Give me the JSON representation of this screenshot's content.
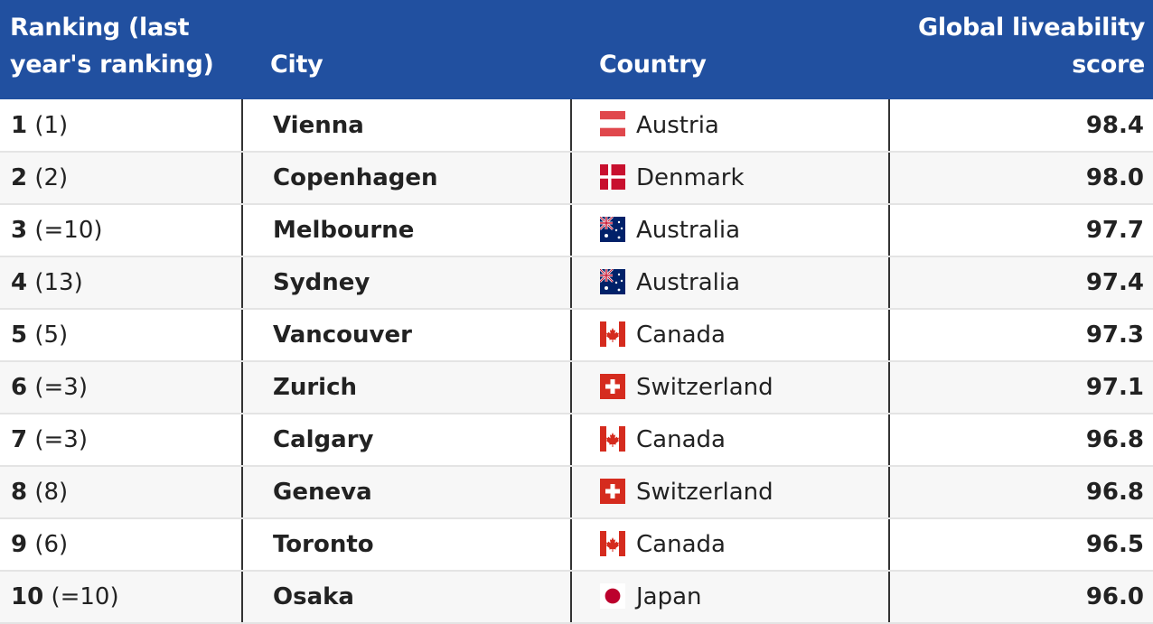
{
  "chart_data": {
    "type": "table",
    "columns": [
      "Ranking (last year's ranking)",
      "City",
      "Country",
      "Global liveability score"
    ],
    "rows": [
      {
        "rank": "1",
        "last": "(1)",
        "city": "Vienna",
        "country": "Austria",
        "flag": "austria-flag-icon",
        "score": 98.4
      },
      {
        "rank": "2",
        "last": "(2)",
        "city": "Copenhagen",
        "country": "Denmark",
        "flag": "denmark-flag-icon",
        "score": 98.0
      },
      {
        "rank": "3",
        "last": "(=10)",
        "city": "Melbourne",
        "country": "Australia",
        "flag": "australia-flag-icon",
        "score": 97.7
      },
      {
        "rank": "4",
        "last": "(13)",
        "city": "Sydney",
        "country": "Australia",
        "flag": "australia-flag-icon",
        "score": 97.4
      },
      {
        "rank": "5",
        "last": "(5)",
        "city": "Vancouver",
        "country": "Canada",
        "flag": "canada-flag-icon",
        "score": 97.3
      },
      {
        "rank": "6",
        "last": "(=3)",
        "city": "Zurich",
        "country": "Switzerland",
        "flag": "switzerland-flag-icon",
        "score": 97.1
      },
      {
        "rank": "7",
        "last": "(=3)",
        "city": "Calgary",
        "country": "Canada",
        "flag": "canada-flag-icon",
        "score": 96.8
      },
      {
        "rank": "8",
        "last": "(8)",
        "city": "Geneva",
        "country": "Switzerland",
        "flag": "switzerland-flag-icon",
        "score": 96.8
      },
      {
        "rank": "9",
        "last": "(6)",
        "city": "Toronto",
        "country": "Canada",
        "flag": "canada-flag-icon",
        "score": 96.5
      },
      {
        "rank": "10",
        "last": "(=10)",
        "city": "Osaka",
        "country": "Japan",
        "flag": "japan-flag-icon",
        "score": 96.0
      }
    ]
  },
  "colors": {
    "header_bg": "#2150a0",
    "header_text": "#ffffff",
    "flag_red": "#d52b1e",
    "austria_red": "#e0474c",
    "australia_blue": "#012169"
  }
}
